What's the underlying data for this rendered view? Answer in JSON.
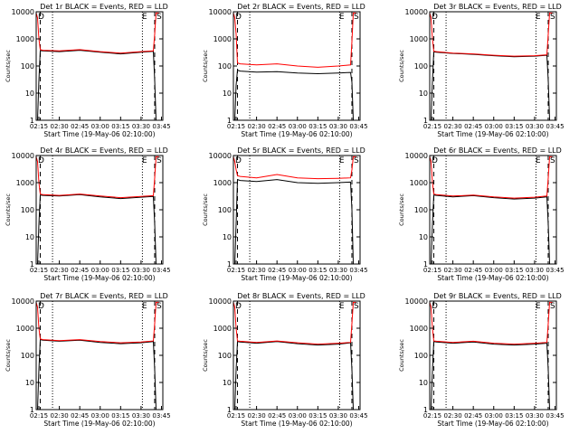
{
  "colors": {
    "events": "#000000",
    "lld": "#ff0000",
    "axis": "#000000",
    "background": "#ffffff"
  },
  "xlabel": "Start Time (19-May-06 02:10:00)",
  "ylabel": "Counts/sec",
  "chart_data": [
    {
      "type": "line",
      "title": "Det 1r BLACK = Events, RED = LLD",
      "xlabel": "Start Time (19-May-06 02:10:00)",
      "ylabel": "Counts/sec",
      "x_ticks": [
        "02:15",
        "02:30",
        "02:45",
        "03:00",
        "03:15",
        "03:30",
        "03:45"
      ],
      "y_ticks": [
        "1",
        "10",
        "100",
        "1000",
        "10000"
      ],
      "ylim": [
        1,
        10000
      ],
      "yscale": "log",
      "markers": {
        "left": "D",
        "right_E": "E",
        "right_S": "S"
      },
      "x": [
        "02:13",
        "02:14",
        "02:15",
        "02:16",
        "02:18",
        "02:30",
        "02:45",
        "03:00",
        "03:15",
        "03:30",
        "03:39",
        "03:40",
        "03:41",
        "03:43"
      ],
      "series": [
        {
          "name": "Events",
          "color": "#000000",
          "values": [
            1,
            1,
            30,
            370,
            360,
            340,
            380,
            320,
            280,
            320,
            350,
            30,
            1,
            1
          ]
        },
        {
          "name": "LLD",
          "color": "#ff0000",
          "values": [
            9000,
            6000,
            1000,
            400,
            380,
            360,
            400,
            340,
            300,
            340,
            360,
            1500,
            9000,
            9000
          ]
        }
      ]
    },
    {
      "type": "line",
      "title": "Det 2r BLACK = Events, RED = LLD",
      "xlabel": "Start Time (19-May-06 02:10:00)",
      "ylabel": "Counts/sec",
      "x_ticks": [
        "02:15",
        "02:30",
        "02:45",
        "03:00",
        "03:15",
        "03:30",
        "03:45"
      ],
      "y_ticks": [
        "1",
        "10",
        "100",
        "1000",
        "10000"
      ],
      "ylim": [
        1,
        10000
      ],
      "yscale": "log",
      "markers": {
        "left": "D",
        "right_E": "E",
        "right_S": "S"
      },
      "x": [
        "02:13",
        "02:14",
        "02:15",
        "02:16",
        "02:18",
        "02:30",
        "02:45",
        "03:00",
        "03:15",
        "03:30",
        "03:39",
        "03:40",
        "03:41",
        "03:43"
      ],
      "series": [
        {
          "name": "Events",
          "color": "#000000",
          "values": [
            1,
            1,
            20,
            70,
            65,
            60,
            62,
            55,
            52,
            55,
            58,
            25,
            1,
            1
          ]
        },
        {
          "name": "LLD",
          "color": "#ff0000",
          "values": [
            9000,
            6000,
            1500,
            130,
            120,
            110,
            120,
            100,
            90,
            100,
            110,
            800,
            9000,
            9000
          ]
        }
      ]
    },
    {
      "type": "line",
      "title": "Det 3r BLACK = Events, RED = LLD",
      "xlabel": "Start Time (19-May-06 02:10:00)",
      "ylabel": "Counts/sec",
      "x_ticks": [
        "02:15",
        "02:30",
        "02:45",
        "03:00",
        "03:15",
        "03:30",
        "03:45"
      ],
      "y_ticks": [
        "1",
        "10",
        "100",
        "1000",
        "10000"
      ],
      "ylim": [
        1,
        10000
      ],
      "yscale": "log",
      "markers": {
        "left": "D",
        "right_E": "E",
        "right_S": "S"
      },
      "x": [
        "02:13",
        "02:14",
        "02:15",
        "02:16",
        "02:18",
        "02:30",
        "02:45",
        "03:00",
        "03:15",
        "03:30",
        "03:39",
        "03:40",
        "03:41",
        "03:43"
      ],
      "series": [
        {
          "name": "Events",
          "color": "#000000",
          "values": [
            1,
            1,
            30,
            330,
            320,
            290,
            270,
            240,
            220,
            230,
            250,
            30,
            1,
            1
          ]
        },
        {
          "name": "LLD",
          "color": "#ff0000",
          "values": [
            9000,
            6000,
            1000,
            350,
            340,
            300,
            280,
            250,
            230,
            240,
            260,
            1500,
            9000,
            9000
          ]
        }
      ]
    },
    {
      "type": "line",
      "title": "Det 4r BLACK = Events, RED = LLD",
      "xlabel": "Start Time (19-May-06 02:10:00)",
      "ylabel": "Counts/sec",
      "x_ticks": [
        "02:15",
        "02:30",
        "02:45",
        "03:00",
        "03:15",
        "03:30",
        "03:45"
      ],
      "y_ticks": [
        "1",
        "10",
        "100",
        "1000",
        "10000"
      ],
      "ylim": [
        1,
        10000
      ],
      "yscale": "log",
      "markers": {
        "left": "D",
        "right_E": "E",
        "right_S": "S"
      },
      "x": [
        "02:13",
        "02:14",
        "02:15",
        "02:16",
        "02:18",
        "02:30",
        "02:45",
        "03:00",
        "03:15",
        "03:30",
        "03:39",
        "03:40",
        "03:41",
        "03:43"
      ],
      "series": [
        {
          "name": "Events",
          "color": "#000000",
          "values": [
            1,
            1,
            30,
            350,
            340,
            320,
            360,
            300,
            260,
            290,
            310,
            30,
            1,
            1
          ]
        },
        {
          "name": "LLD",
          "color": "#ff0000",
          "values": [
            9000,
            6000,
            1000,
            380,
            360,
            340,
            380,
            320,
            280,
            310,
            330,
            1500,
            9000,
            9000
          ]
        }
      ]
    },
    {
      "type": "line",
      "title": "Det 5r BLACK = Events, RED = LLD",
      "xlabel": "Start Time (19-May-06 02:10:00)",
      "ylabel": "Counts/sec",
      "x_ticks": [
        "02:15",
        "02:30",
        "02:45",
        "03:00",
        "03:15",
        "03:30",
        "03:45"
      ],
      "y_ticks": [
        "1",
        "10",
        "100",
        "1000",
        "10000"
      ],
      "ylim": [
        1,
        10000
      ],
      "yscale": "log",
      "markers": {
        "left": "D",
        "right_E": "E",
        "right_S": "S"
      },
      "x": [
        "02:13",
        "02:14",
        "02:15",
        "02:16",
        "02:18",
        "02:30",
        "02:45",
        "03:00",
        "03:15",
        "03:30",
        "03:39",
        "03:40",
        "03:41",
        "03:43"
      ],
      "series": [
        {
          "name": "Events",
          "color": "#000000",
          "values": [
            1,
            1,
            30,
            1300,
            1200,
            1100,
            1300,
            1000,
            950,
            1000,
            1050,
            100,
            1,
            1
          ]
        },
        {
          "name": "LLD",
          "color": "#ff0000",
          "values": [
            9000,
            6000,
            3000,
            1800,
            1700,
            1500,
            2000,
            1500,
            1400,
            1450,
            1500,
            3000,
            9000,
            9000
          ]
        }
      ]
    },
    {
      "type": "line",
      "title": "Det 6r BLACK = Events, RED = LLD",
      "xlabel": "Start Time (19-May-06 02:10:00)",
      "ylabel": "Counts/sec",
      "x_ticks": [
        "02:15",
        "02:30",
        "02:45",
        "03:00",
        "03:15",
        "03:30",
        "03:45"
      ],
      "y_ticks": [
        "1",
        "10",
        "100",
        "1000",
        "10000"
      ],
      "ylim": [
        1,
        10000
      ],
      "yscale": "log",
      "markers": {
        "left": "D",
        "right_E": "E",
        "right_S": "S"
      },
      "x": [
        "02:13",
        "02:14",
        "02:15",
        "02:16",
        "02:18",
        "02:30",
        "02:45",
        "03:00",
        "03:15",
        "03:30",
        "03:39",
        "03:40",
        "03:41",
        "03:43"
      ],
      "series": [
        {
          "name": "Events",
          "color": "#000000",
          "values": [
            1,
            1,
            30,
            350,
            340,
            300,
            330,
            280,
            250,
            270,
            300,
            30,
            1,
            1
          ]
        },
        {
          "name": "LLD",
          "color": "#ff0000",
          "values": [
            9000,
            6000,
            1000,
            380,
            360,
            320,
            350,
            300,
            270,
            290,
            320,
            1500,
            9000,
            9000
          ]
        }
      ]
    },
    {
      "type": "line",
      "title": "Det 7r BLACK = Events, RED = LLD",
      "xlabel": "Start Time (19-May-06 02:10:00)",
      "ylabel": "Counts/sec",
      "x_ticks": [
        "02:15",
        "02:30",
        "02:45",
        "03:00",
        "03:15",
        "03:30",
        "03:45"
      ],
      "y_ticks": [
        "1",
        "10",
        "100",
        "1000",
        "10000"
      ],
      "ylim": [
        1,
        10000
      ],
      "yscale": "log",
      "markers": {
        "left": "D",
        "right_E": "E",
        "right_S": "S"
      },
      "x": [
        "02:13",
        "02:14",
        "02:15",
        "02:16",
        "02:18",
        "02:30",
        "02:45",
        "03:00",
        "03:15",
        "03:30",
        "03:39",
        "03:40",
        "03:41",
        "03:43"
      ],
      "series": [
        {
          "name": "Events",
          "color": "#000000",
          "values": [
            1,
            1,
            30,
            380,
            360,
            330,
            360,
            300,
            270,
            290,
            320,
            30,
            1,
            1
          ]
        },
        {
          "name": "LLD",
          "color": "#ff0000",
          "values": [
            9000,
            6000,
            1000,
            400,
            380,
            350,
            380,
            320,
            290,
            310,
            340,
            1500,
            9000,
            9000
          ]
        }
      ]
    },
    {
      "type": "line",
      "title": "Det 8r BLACK = Events, RED = LLD",
      "xlabel": "Start Time (19-May-06 02:10:00)",
      "ylabel": "Counts/sec",
      "x_ticks": [
        "02:15",
        "02:30",
        "02:45",
        "03:00",
        "03:15",
        "03:30",
        "03:45"
      ],
      "y_ticks": [
        "1",
        "10",
        "100",
        "1000",
        "10000"
      ],
      "ylim": [
        1,
        10000
      ],
      "yscale": "log",
      "markers": {
        "left": "D",
        "right_E": "E",
        "right_S": "S"
      },
      "x": [
        "02:13",
        "02:14",
        "02:15",
        "02:16",
        "02:18",
        "02:30",
        "02:45",
        "03:00",
        "03:15",
        "03:30",
        "03:39",
        "03:40",
        "03:41",
        "03:43"
      ],
      "series": [
        {
          "name": "Events",
          "color": "#000000",
          "values": [
            1,
            1,
            30,
            320,
            310,
            280,
            320,
            270,
            240,
            260,
            290,
            30,
            1,
            1
          ]
        },
        {
          "name": "LLD",
          "color": "#ff0000",
          "values": [
            9000,
            6000,
            1000,
            340,
            330,
            300,
            340,
            290,
            260,
            280,
            300,
            1500,
            9000,
            9000
          ]
        }
      ]
    },
    {
      "type": "line",
      "title": "Det 9r BLACK = Events, RED = LLD",
      "xlabel": "Start Time (19-May-06 02:10:00)",
      "ylabel": "Counts/sec",
      "x_ticks": [
        "02:15",
        "02:30",
        "02:45",
        "03:00",
        "03:15",
        "03:30",
        "03:45"
      ],
      "y_ticks": [
        "1",
        "10",
        "100",
        "1000",
        "10000"
      ],
      "ylim": [
        1,
        10000
      ],
      "yscale": "log",
      "markers": {
        "left": "D",
        "right_E": "E",
        "right_S": "S"
      },
      "x": [
        "02:13",
        "02:14",
        "02:15",
        "02:16",
        "02:18",
        "02:30",
        "02:45",
        "03:00",
        "03:15",
        "03:30",
        "03:39",
        "03:40",
        "03:41",
        "03:43"
      ],
      "series": [
        {
          "name": "Events",
          "color": "#000000",
          "values": [
            1,
            1,
            30,
            320,
            310,
            280,
            310,
            260,
            240,
            260,
            280,
            30,
            1,
            1
          ]
        },
        {
          "name": "LLD",
          "color": "#ff0000",
          "values": [
            9000,
            6000,
            1000,
            340,
            330,
            300,
            330,
            280,
            260,
            280,
            300,
            1500,
            9000,
            9000
          ]
        }
      ]
    }
  ]
}
